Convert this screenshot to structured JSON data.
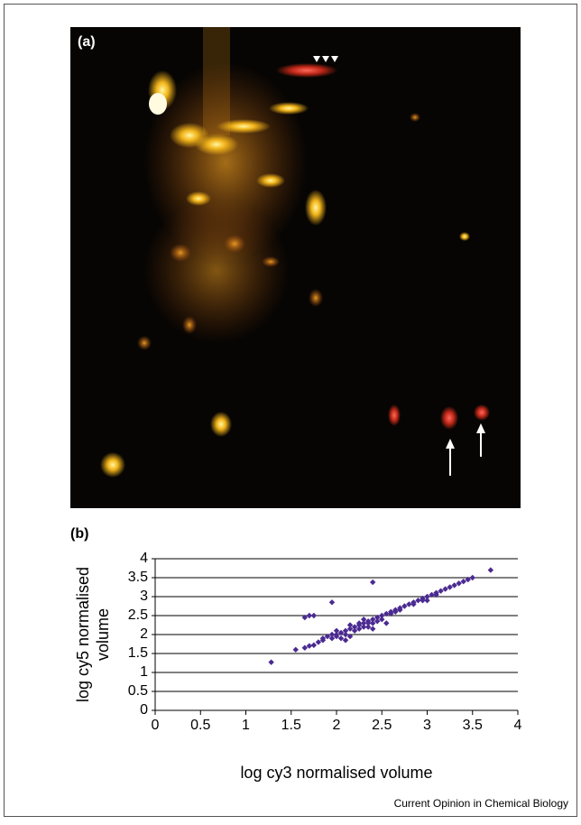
{
  "panels": [
    "(a)",
    "(b)"
  ],
  "credit": "Current Opinion in Chemical Biology",
  "chart_data": {
    "type": "scatter",
    "xlabel": "log cy3 normalised volume",
    "ylabel": [
      "log cy5 normalised",
      "volume"
    ],
    "color": "#4b2a91",
    "xlim": [
      0,
      4
    ],
    "xticks": [
      0,
      0.5,
      1,
      1.5,
      2,
      2.5,
      3,
      3.5,
      4
    ],
    "ylim": [
      0,
      4
    ],
    "yticks": [
      0,
      0.5,
      1,
      1.5,
      2,
      2.5,
      3,
      3.5,
      4
    ],
    "grid": true,
    "x": [
      1.28,
      1.55,
      1.65,
      1.7,
      1.75,
      1.65,
      1.7,
      1.75,
      1.95,
      2.4,
      1.8,
      1.85,
      1.9,
      1.95,
      2.0,
      2.0,
      2.05,
      2.1,
      2.1,
      2.15,
      2.2,
      2.2,
      2.25,
      2.3,
      2.3,
      2.35,
      2.4,
      2.4,
      2.45,
      2.5,
      2.55,
      2.6,
      2.65,
      2.7,
      2.75,
      2.8,
      2.85,
      2.9,
      2.95,
      3.0,
      3.05,
      3.1,
      3.15,
      3.2,
      3.25,
      3.3,
      3.4,
      3.45,
      3.5,
      3.7,
      2.55,
      2.4,
      2.05,
      2.15,
      2.25,
      2.35,
      1.95,
      2.1,
      2.5,
      2.6,
      2.7,
      2.85,
      3.0,
      2.25,
      2.45,
      2.0,
      1.85,
      2.15,
      2.3,
      2.65,
      2.95,
      3.1,
      3.35,
      2.35
    ],
    "values": [
      1.27,
      1.6,
      1.65,
      1.7,
      1.72,
      2.45,
      2.5,
      2.5,
      2.85,
      3.38,
      1.8,
      1.85,
      1.95,
      1.9,
      2.0,
      1.95,
      2.05,
      2.0,
      2.1,
      2.15,
      2.2,
      2.1,
      2.25,
      2.3,
      2.2,
      2.35,
      2.4,
      2.3,
      2.45,
      2.5,
      2.55,
      2.6,
      2.65,
      2.7,
      2.75,
      2.8,
      2.85,
      2.9,
      2.95,
      3.0,
      3.05,
      3.1,
      3.15,
      3.2,
      3.25,
      3.3,
      3.4,
      3.45,
      3.5,
      3.7,
      2.3,
      2.15,
      1.9,
      1.95,
      2.3,
      2.2,
      2.0,
      1.85,
      2.4,
      2.55,
      2.65,
      2.8,
      2.9,
      2.15,
      2.35,
      2.1,
      1.9,
      2.25,
      2.4,
      2.6,
      2.9,
      3.05,
      3.35,
      2.3
    ]
  }
}
